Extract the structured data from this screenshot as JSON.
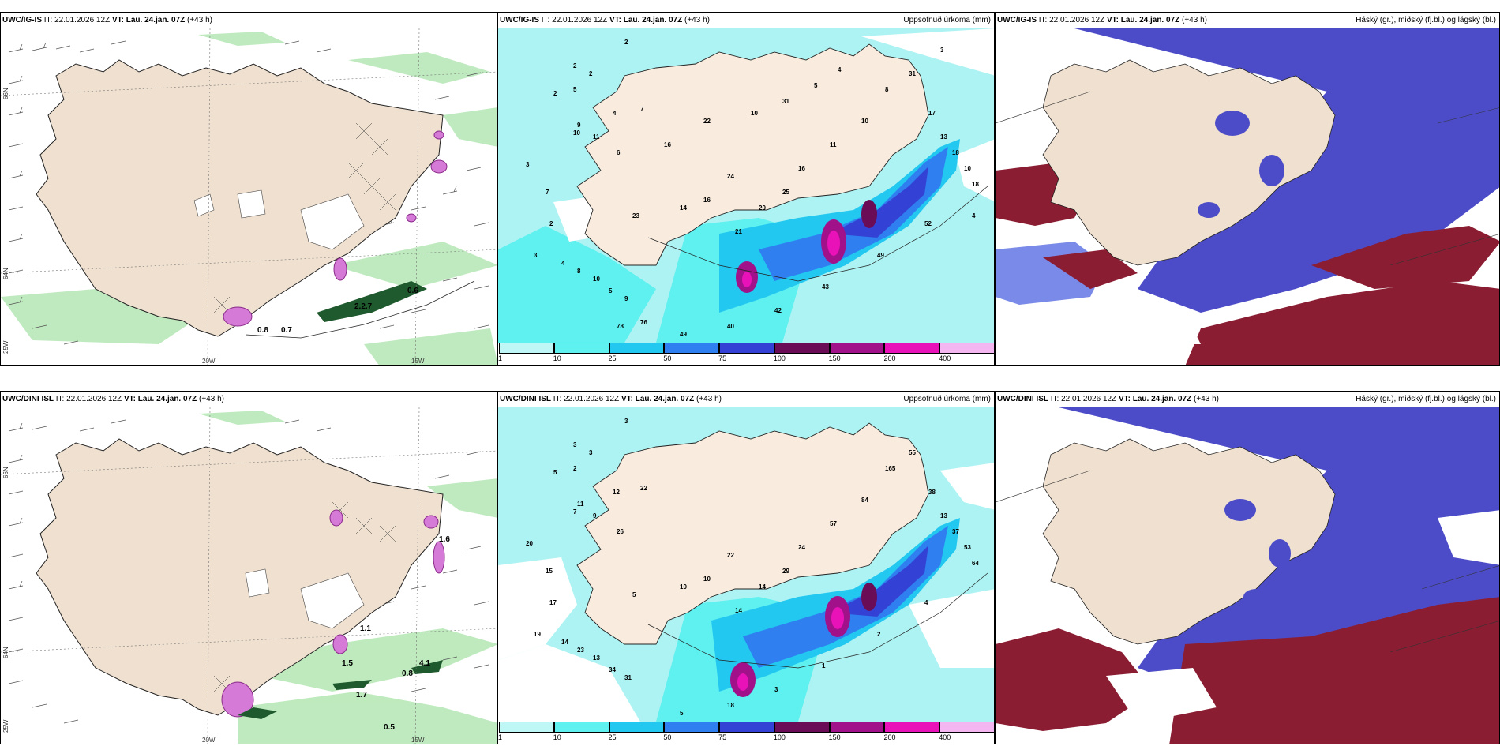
{
  "top": {
    "left": {
      "model": "UWC/IG-IS",
      "it_label": "IT:",
      "it_value": "22.01.2026 12Z",
      "vt_label": "VT:",
      "vt_value": "Lau. 24.jan. 07Z",
      "lead": "(+43 h)",
      "values": [
        "0.6",
        "2.2.7",
        "0.8",
        "0.7"
      ],
      "lon_labels": [
        "20W",
        "15W"
      ],
      "lat_labels": [
        "66N",
        "64N",
        "25W"
      ]
    },
    "mid": {
      "model": "UWC/IG-IS",
      "it_label": "IT:",
      "it_value": "22.01.2026 12Z",
      "vt_label": "VT:",
      "vt_value": "Lau. 24.jan. 07Z",
      "lead": "(+43 h)",
      "right_title": "Uppsöfnuð úrkoma (mm)",
      "values": [
        "2",
        "2",
        "2",
        "2",
        "5",
        "7",
        "4",
        "9",
        "10",
        "11",
        "6",
        "3",
        "7",
        "2",
        "3",
        "4",
        "8",
        "10",
        "5",
        "9",
        "23",
        "14",
        "16",
        "24",
        "21",
        "20",
        "25",
        "16",
        "11",
        "10",
        "8",
        "31",
        "17",
        "13",
        "18",
        "10",
        "18",
        "52",
        "49",
        "43",
        "42",
        "40",
        "49",
        "76",
        "78",
        "16",
        "22",
        "10",
        "31",
        "5",
        "4",
        "3",
        "4"
      ]
    },
    "right": {
      "model": "UWC/IG-IS",
      "it_label": "IT:",
      "it_value": "22.01.2026 12Z",
      "vt_label": "VT:",
      "vt_value": "Lau. 24.jan. 07Z",
      "lead": "(+43 h)",
      "right_title": "Háský (gr.), miðský (fj.bl.) og lágský (bl.)"
    }
  },
  "bottom": {
    "left": {
      "model": "UWC/DINI ISL",
      "it_label": "IT:",
      "it_value": "22.01.2026 12Z",
      "vt_label": "VT:",
      "vt_value": "Lau. 24.jan. 07Z",
      "lead": "(+43 h)",
      "values": [
        "1.6",
        "1.1",
        "1.5",
        "4.1",
        "0.8",
        "1.7",
        "0.5"
      ],
      "lon_labels": [
        "20W",
        "15W"
      ],
      "lat_labels": [
        "66N",
        "64N",
        "25W"
      ]
    },
    "mid": {
      "model": "UWC/DINI ISL",
      "it_label": "IT:",
      "it_value": "22.01.2026 12Z",
      "vt_label": "VT:",
      "vt_value": "Lau. 24.jan. 07Z",
      "lead": "(+43 h)",
      "right_title": "Uppsöfnuð úrkoma (mm)",
      "values": [
        "3",
        "3",
        "3",
        "5",
        "2",
        "22",
        "12",
        "11",
        "7",
        "9",
        "26",
        "20",
        "15",
        "17",
        "19",
        "14",
        "23",
        "13",
        "34",
        "31",
        "5",
        "10",
        "10",
        "22",
        "14",
        "14",
        "29",
        "24",
        "57",
        "84",
        "165",
        "55",
        "38",
        "13",
        "37",
        "53",
        "64",
        "4",
        "2",
        "1",
        "3",
        "18",
        "5"
      ]
    },
    "right": {
      "model": "UWC/DINI ISL",
      "it_label": "IT:",
      "it_value": "22.01.2026 12Z",
      "vt_label": "VT:",
      "vt_value": "Lau. 24.jan. 07Z",
      "lead": "(+43 h)",
      "right_title": "Háský (gr.), miðský (fj.bl.) og lágský (bl.)"
    }
  },
  "precip_scale": {
    "ticks": [
      "1",
      "10",
      "25",
      "50",
      "75",
      "100",
      "150",
      "200",
      "400"
    ],
    "colors": [
      "#bff7f7",
      "#5ff0f0",
      "#22c8f0",
      "#2f7ff0",
      "#3342d4",
      "#6a0c56",
      "#a0118a",
      "#e812b8",
      "#f4b6f0"
    ]
  },
  "colors": {
    "land": "#efe0d0",
    "sea_cyan": "#aef3f3",
    "cloud_high": "#8b1d33",
    "cloud_mid": "#4c4cc8",
    "cloud_low": "#7a8ae8",
    "green_precip": "#a6e3a6"
  }
}
